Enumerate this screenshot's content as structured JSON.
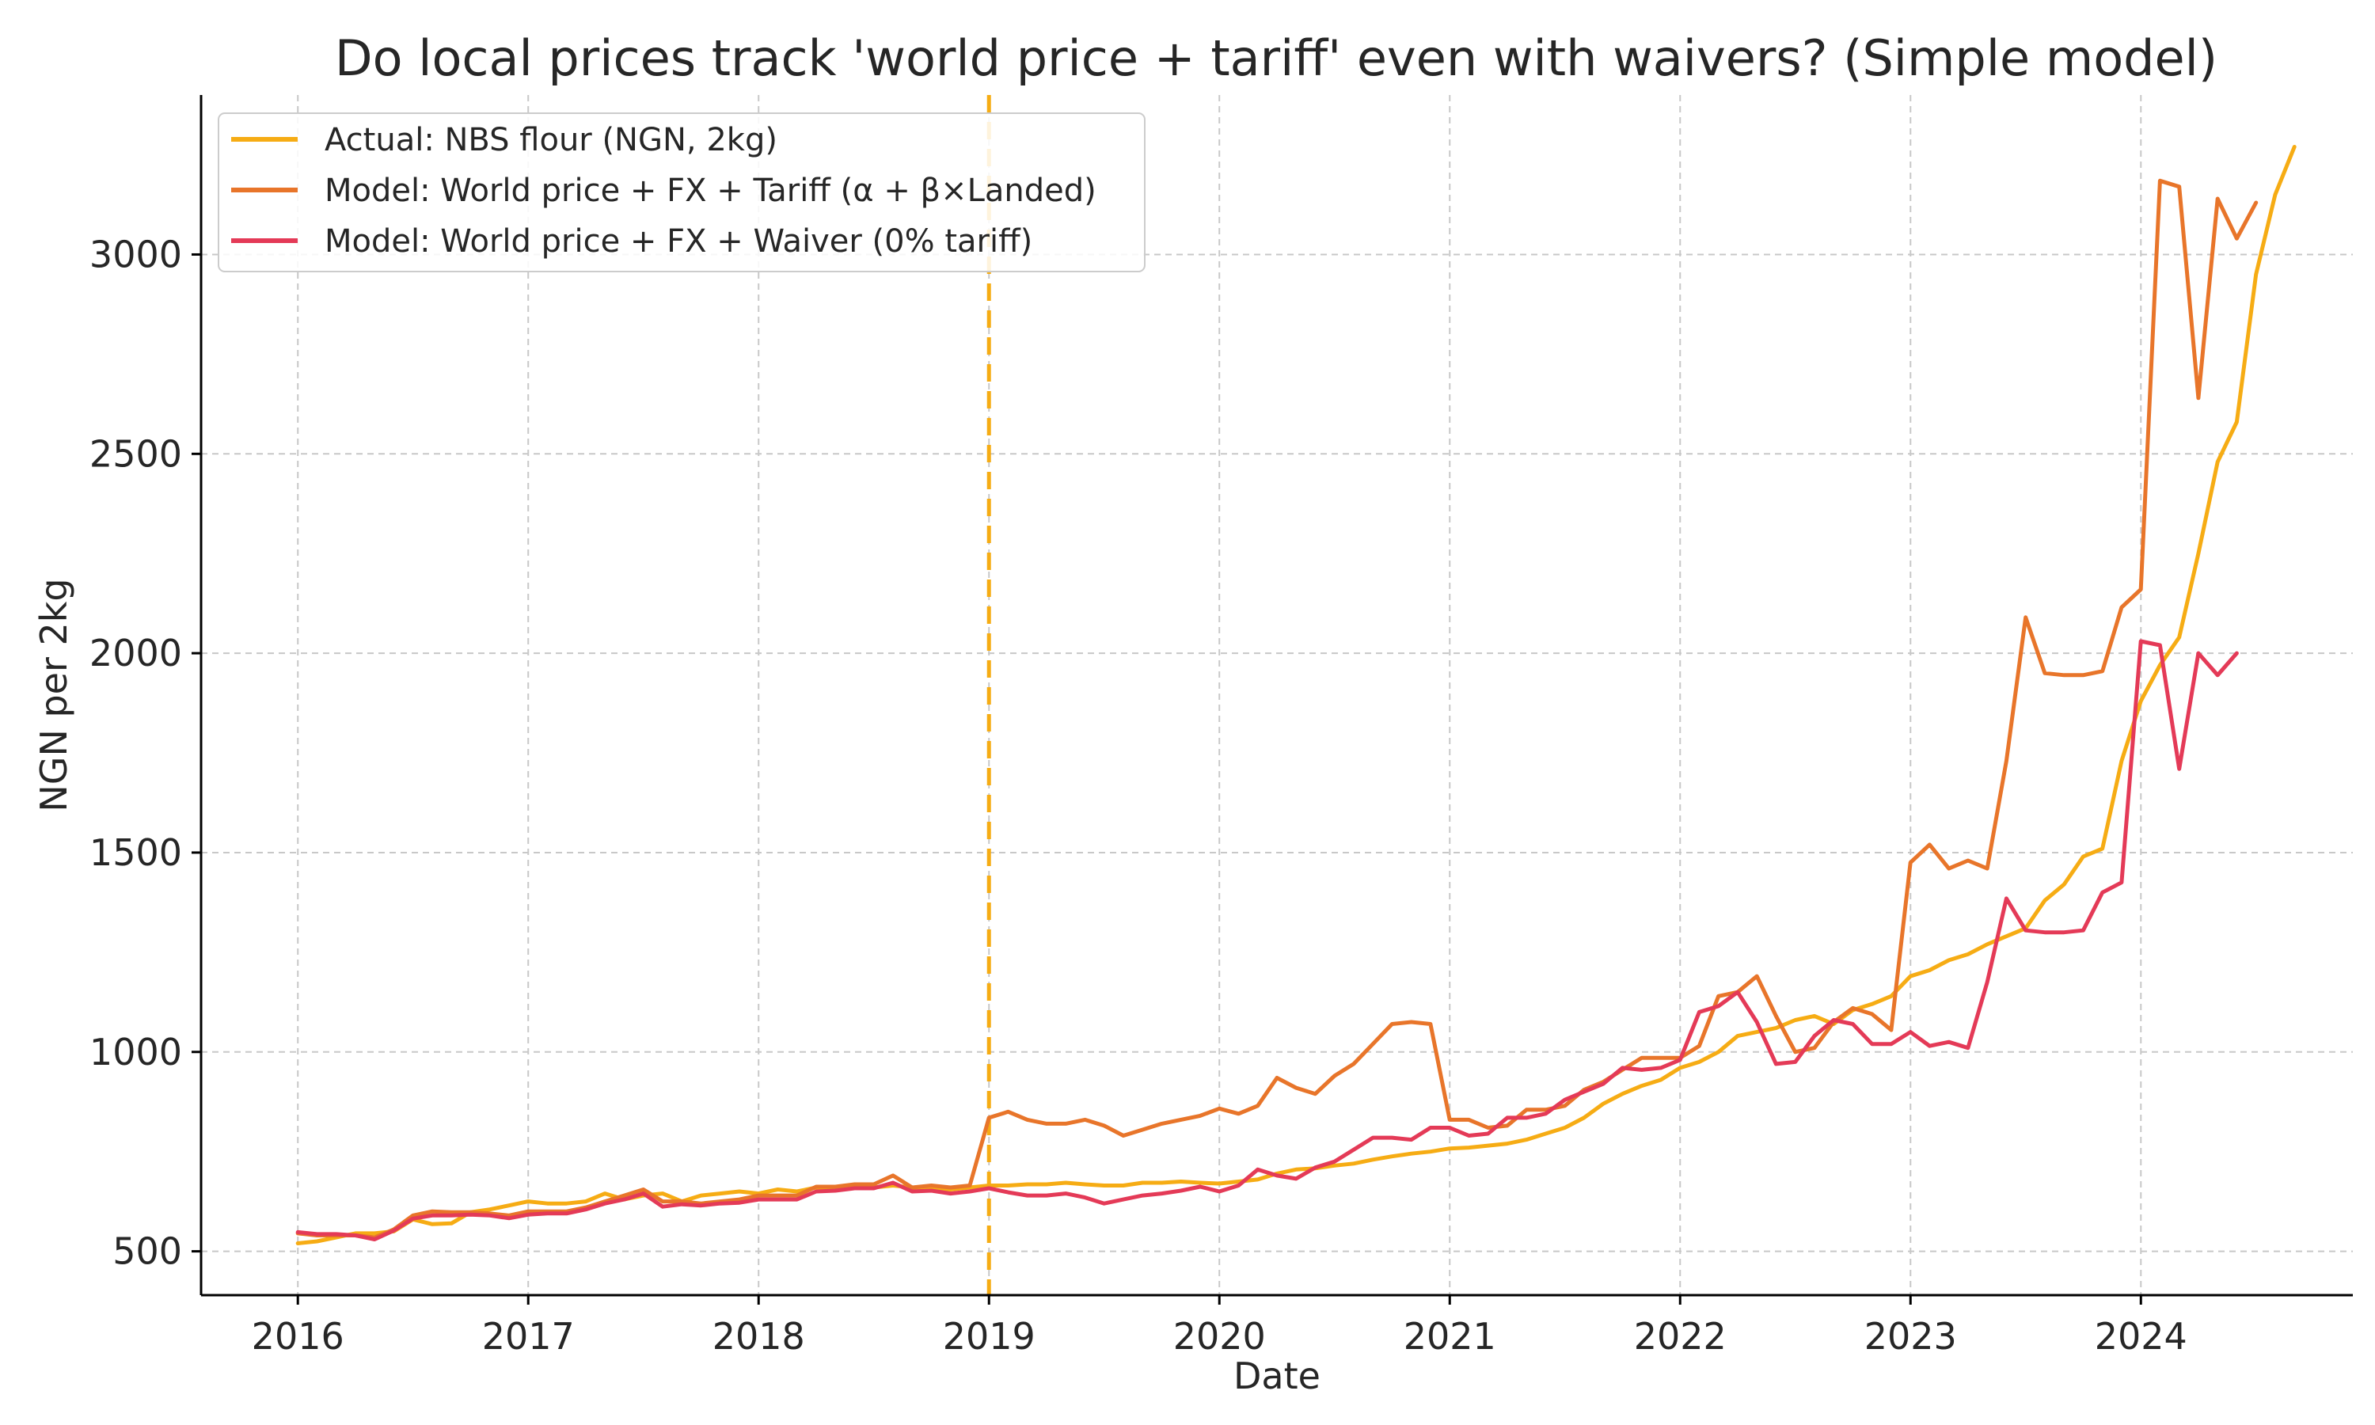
{
  "chart_data": {
    "type": "line",
    "title": "Do local prices track 'world price + tariff' even with waivers? (Simple model)",
    "xlabel": "Date",
    "ylabel": "NGN per 2kg",
    "xlim": [
      2015.58,
      2024.92
    ],
    "ylim": [
      390,
      3400
    ],
    "xticks": [
      2016,
      2017,
      2018,
      2019,
      2020,
      2021,
      2022,
      2023,
      2024
    ],
    "xtick_labels": [
      "2016",
      "2017",
      "2018",
      "2019",
      "2020",
      "2021",
      "2022",
      "2023",
      "2024"
    ],
    "yticks": [
      500,
      1000,
      1500,
      2000,
      2500,
      3000
    ],
    "ytick_labels": [
      "500",
      "1000",
      "1500",
      "2000",
      "2500",
      "3000"
    ],
    "grid": true,
    "legend_position": "upper-left",
    "vline": {
      "x": 2019.0,
      "color": "#f6ac14",
      "style": "dashed"
    },
    "series": [
      {
        "name": "Actual: NBS flour (NGN, 2kg)",
        "color": "#f6ac14",
        "x_start": 2016.0,
        "x_step": 0.08333,
        "values": [
          520,
          525,
          535,
          545,
          545,
          550,
          580,
          568,
          570,
          598,
          605,
          615,
          625,
          620,
          620,
          625,
          645,
          630,
          640,
          645,
          625,
          640,
          645,
          650,
          645,
          655,
          650,
          660,
          655,
          660,
          660,
          665,
          660,
          658,
          655,
          660,
          665,
          665,
          668,
          668,
          672,
          668,
          665,
          665,
          672,
          672,
          675,
          672,
          670,
          675,
          680,
          695,
          705,
          708,
          715,
          720,
          730,
          738,
          745,
          750,
          758,
          760,
          765,
          770,
          780,
          795,
          810,
          835,
          870,
          895,
          915,
          930,
          960,
          975,
          1000,
          1040,
          1050,
          1060,
          1080,
          1090,
          1070,
          1105,
          1120,
          1140,
          1190,
          1205,
          1230,
          1245,
          1270,
          1290,
          1310,
          1380,
          1420,
          1490,
          1510,
          1730,
          1880,
          1970,
          2040,
          2250,
          2480,
          2580,
          2950,
          3150,
          3270
        ]
      },
      {
        "name": "Model: World price + FX + Tariff (α + β×Landed)",
        "color": "#e8752a",
        "x_start": 2016.0,
        "x_step": 0.08333,
        "values": [
          545,
          540,
          540,
          540,
          535,
          555,
          590,
          600,
          598,
          598,
          595,
          590,
          600,
          600,
          600,
          610,
          625,
          640,
          655,
          625,
          625,
          620,
          625,
          630,
          640,
          640,
          640,
          662,
          662,
          668,
          668,
          690,
          660,
          665,
          660,
          665,
          835,
          850,
          830,
          820,
          820,
          830,
          815,
          790,
          805,
          820,
          830,
          840,
          858,
          845,
          865,
          935,
          910,
          895,
          940,
          970,
          1020,
          1070,
          1075,
          1070,
          830,
          830,
          810,
          815,
          855,
          855,
          865,
          905,
          925,
          955,
          985,
          985,
          985,
          1015,
          1140,
          1150,
          1190,
          1090,
          1000,
          1010,
          1075,
          1110,
          1095,
          1055,
          1475,
          1520,
          1460,
          1480,
          1460,
          1730,
          2090,
          1950,
          1945,
          1945,
          1955,
          2115,
          2160,
          3185,
          3170,
          2640,
          3140,
          3040,
          3130
        ]
      },
      {
        "name": "Model: World price + FX + Waiver (0% tariff)",
        "color": "#e43a57",
        "x_start": 2016.0,
        "x_step": 0.08333,
        "values": [
          548,
          543,
          543,
          540,
          530,
          552,
          582,
          590,
          590,
          592,
          590,
          583,
          592,
          595,
          595,
          605,
          620,
          630,
          645,
          612,
          618,
          615,
          620,
          622,
          630,
          630,
          630,
          650,
          652,
          658,
          658,
          672,
          650,
          652,
          645,
          650,
          658,
          648,
          640,
          640,
          645,
          635,
          620,
          630,
          640,
          645,
          652,
          662,
          650,
          665,
          705,
          690,
          682,
          710,
          725,
          755,
          785,
          785,
          780,
          810,
          810,
          790,
          795,
          835,
          835,
          845,
          880,
          900,
          920,
          960,
          955,
          960,
          980,
          1100,
          1115,
          1150,
          1075,
          970,
          975,
          1040,
          1080,
          1070,
          1020,
          1020,
          1050,
          1015,
          1025,
          1010,
          1175,
          1385,
          1305,
          1300,
          1300,
          1305,
          1400,
          1425,
          2030,
          2020,
          1710,
          2000,
          1945,
          2000
        ]
      }
    ]
  }
}
